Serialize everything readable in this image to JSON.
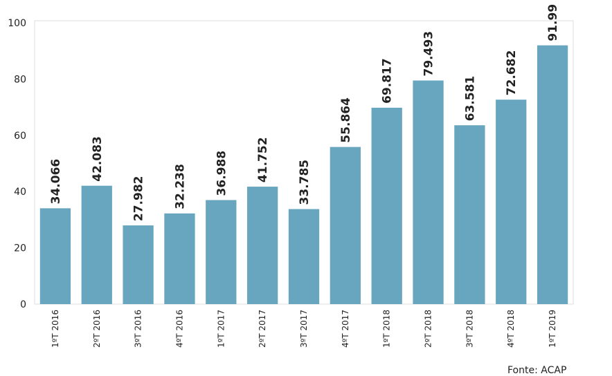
{
  "chart_data": {
    "type": "bar",
    "categories": [
      "1ºT 2016",
      "2ºT 2016",
      "3ºT 2016",
      "4ºT 2016",
      "1ºT 2017",
      "2ºT 2017",
      "3ºT 2017",
      "4ºT 2017",
      "1ºT 2018",
      "2ºT 2018",
      "3ºT 2018",
      "4ºT 2018",
      "1ºT 2019"
    ],
    "values": [
      34.066,
      42.083,
      27.982,
      32.238,
      36.988,
      41.752,
      33.785,
      55.864,
      69.817,
      79.493,
      63.581,
      72.682,
      91.99
    ],
    "color": "#68a6c0",
    "ylim": [
      0,
      100
    ],
    "yticks": [
      0,
      20,
      40,
      60,
      80,
      100
    ],
    "grid": false,
    "source": "Fonte: ACAP"
  }
}
